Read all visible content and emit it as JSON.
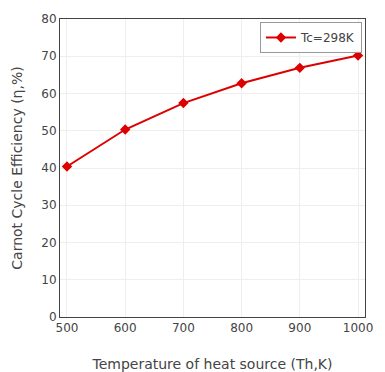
{
  "chart_data": {
    "type": "line",
    "xlabel": "Temperature of heat source (Th,K)",
    "ylabel": "Carnot Cycle Efficiency (η,%)",
    "x": [
      500,
      600,
      700,
      800,
      900,
      1000
    ],
    "series": [
      {
        "name": "Tc=298K",
        "color": "#dd0000",
        "marker": "diamond",
        "line_style": "solid",
        "values": [
          40.4,
          50.33,
          57.43,
          62.75,
          66.89,
          70.2
        ]
      }
    ],
    "xlim": [
      488,
      1012
    ],
    "ylim": [
      0,
      80
    ],
    "xticks": [
      500,
      600,
      700,
      800,
      900,
      1000
    ],
    "yticks": [
      0,
      10,
      20,
      30,
      40,
      50,
      60,
      70,
      80
    ],
    "grid": true,
    "legend": "upper right"
  }
}
